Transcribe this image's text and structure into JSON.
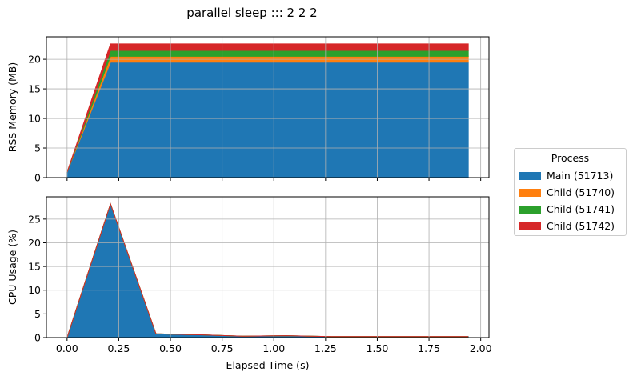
{
  "title": "parallel sleep ::: 2 2 2",
  "legend": {
    "title": "Process",
    "items": [
      {
        "label": "Main (51713)",
        "color": "#1f77b4"
      },
      {
        "label": "Child (51740)",
        "color": "#ff7f0e"
      },
      {
        "label": "Child (51741)",
        "color": "#2ca02c"
      },
      {
        "label": "Child (51742)",
        "color": "#d62728"
      }
    ]
  },
  "chart_data": [
    {
      "type": "area",
      "stacked": true,
      "ylabel": "RSS Memory (MB)",
      "xlabel": "",
      "xlim": [
        -0.1,
        2.04
      ],
      "ylim": [
        0,
        23.8
      ],
      "yticks": [
        0,
        5,
        10,
        15,
        20
      ],
      "ytick_labels": [
        "0",
        "5",
        "10",
        "15",
        "20"
      ],
      "xticks": [
        0.0,
        0.25,
        0.5,
        0.75,
        1.0,
        1.25,
        1.5,
        1.75,
        2.0
      ],
      "grid": true,
      "x": [
        0.0,
        0.21,
        1.94
      ],
      "series": [
        {
          "name": "Main (51713)",
          "color": "#1f77b4",
          "values": [
            0.9,
            19.5,
            19.5
          ]
        },
        {
          "name": "Child (51740)",
          "color": "#ff7f0e",
          "values": [
            0.0,
            1.0,
            1.0
          ]
        },
        {
          "name": "Child (51741)",
          "color": "#2ca02c",
          "values": [
            0.0,
            1.0,
            1.0
          ]
        },
        {
          "name": "Child (51742)",
          "color": "#d62728",
          "values": [
            0.0,
            1.1,
            1.1
          ]
        }
      ]
    },
    {
      "type": "area",
      "stacked": true,
      "ylabel": "CPU Usage (%)",
      "xlabel": "Elapsed Time (s)",
      "xlim": [
        -0.1,
        2.04
      ],
      "ylim": [
        0,
        29.7
      ],
      "yticks": [
        0,
        5,
        10,
        15,
        20,
        25
      ],
      "ytick_labels": [
        "0",
        "5",
        "10",
        "15",
        "20",
        "25"
      ],
      "xticks": [
        0.0,
        0.25,
        0.5,
        0.75,
        1.0,
        1.25,
        1.5,
        1.75,
        2.0
      ],
      "xtick_labels": [
        "0.00",
        "0.25",
        "0.50",
        "0.75",
        "1.00",
        "1.25",
        "1.50",
        "1.75",
        "2.00"
      ],
      "grid": true,
      "x": [
        0.0,
        0.21,
        0.43,
        0.64,
        0.85,
        1.06,
        1.28,
        1.49,
        1.71,
        1.94
      ],
      "series": [
        {
          "name": "Main (51713)",
          "color": "#1f77b4",
          "values": [
            0.0,
            28.2,
            0.8,
            0.6,
            0.3,
            0.4,
            0.2,
            0.2,
            0.2,
            0.2
          ]
        },
        {
          "name": "Child (51740)",
          "color": "#ff7f0e",
          "values": [
            0,
            0,
            0,
            0,
            0,
            0,
            0,
            0,
            0,
            0
          ]
        },
        {
          "name": "Child (51741)",
          "color": "#2ca02c",
          "values": [
            0,
            0,
            0,
            0,
            0,
            0,
            0,
            0,
            0,
            0
          ]
        },
        {
          "name": "Child (51742)",
          "color": "#d62728",
          "values": [
            0,
            0,
            0,
            0,
            0,
            0,
            0,
            0,
            0,
            0
          ]
        }
      ]
    }
  ]
}
